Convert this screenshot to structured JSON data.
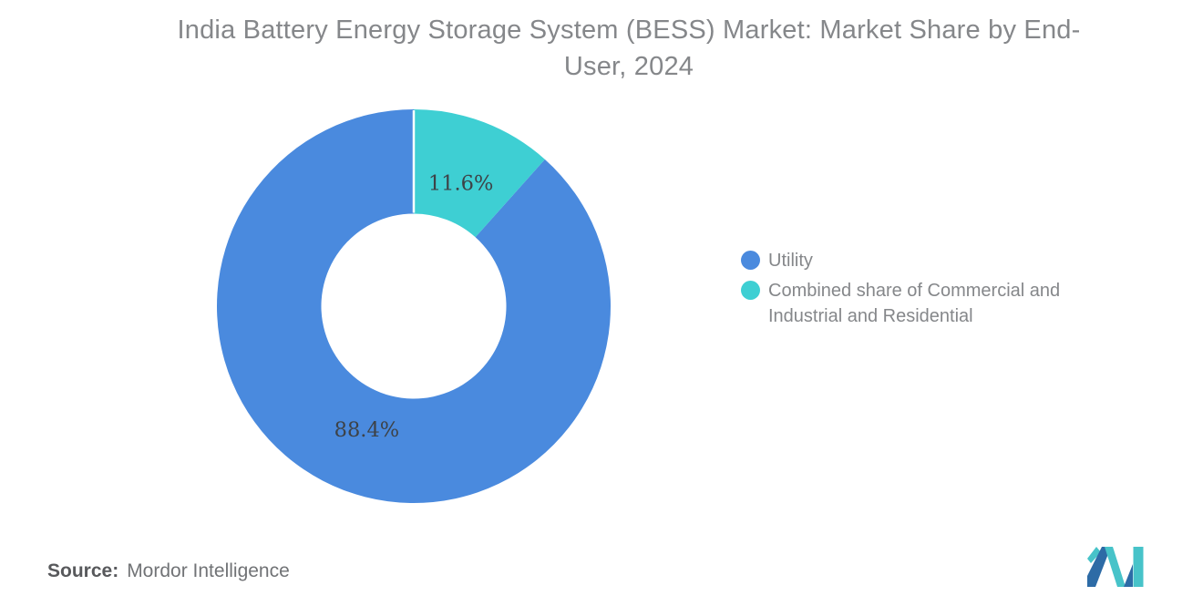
{
  "title": {
    "text": "India Battery Energy Storage System (BESS) Market: Market Share by End-User, 2024"
  },
  "chart_data": {
    "type": "pie",
    "donut": true,
    "title": "India Battery Energy Storage System (BESS) Market: Market Share by End-User, 2024",
    "slices": [
      {
        "label": "Utility",
        "value": 88.4,
        "display": "88.4%",
        "color": "#4a8ade"
      },
      {
        "label": "Combined share of Commercial and Industrial and Residential",
        "value": 11.6,
        "display": "11.6%",
        "color": "#3ecfd3"
      }
    ],
    "total": 100,
    "start_angle_deg": 0,
    "direction": "counterclockwise",
    "inner_radius_ratio": 0.47,
    "label_radius_ratio": 0.67,
    "label_color": "#3d4247",
    "legend_position": "right",
    "grid": false,
    "background": "#ffffff"
  },
  "legend": {
    "items": [
      {
        "label": "Utility",
        "color": "#4a8ade"
      },
      {
        "label": "Combined share of Commercial and Industrial and Residential",
        "color": "#3ecfd3"
      }
    ]
  },
  "source": {
    "label": "Source:",
    "value": "Mordor Intelligence"
  },
  "logo": {
    "name": "mordor-intelligence-logo",
    "blue": "#2d6ba6",
    "teal": "#47c3c9"
  }
}
